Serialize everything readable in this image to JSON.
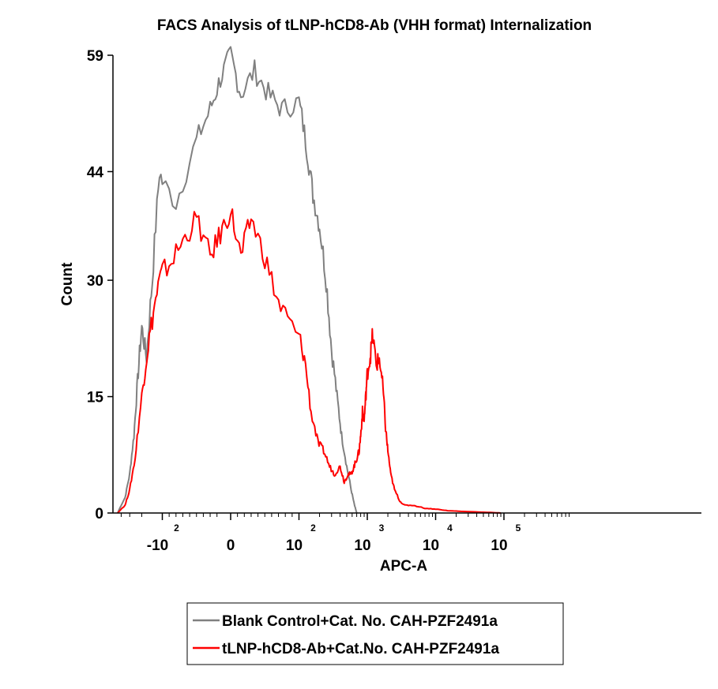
{
  "chart_data": {
    "type": "line",
    "title": "FACS Analysis of tLNP-hCD8-Ab (VHH format) Internalization",
    "xlabel": "APC-A",
    "ylabel": "Count",
    "ylim": [
      0,
      59
    ],
    "y_ticks": [
      "0",
      "15",
      "30",
      "44",
      "59"
    ],
    "x_scale": "biexponential",
    "x_ticks": [
      {
        "base": "-10",
        "exp": "2",
        "value": -100
      },
      {
        "base": "0",
        "exp": "",
        "value": 0
      },
      {
        "base": "10",
        "exp": "2",
        "value": 100
      },
      {
        "base": "10",
        "exp": "3",
        "value": 1000
      },
      {
        "base": "10",
        "exp": "4",
        "value": 10000
      },
      {
        "base": "10",
        "exp": "5",
        "value": 100000
      }
    ],
    "legend_position": "bottom",
    "series": [
      {
        "name": "Blank Control+Cat. No. CAH-PZF2491a",
        "color": "#808080",
        "x": [
          -450,
          -350,
          -300,
          -260,
          -230,
          -200,
          -170,
          -140,
          -110,
          -80,
          -50,
          -30,
          -15,
          0,
          15,
          35,
          55,
          75,
          100,
          130,
          160,
          200,
          250,
          300,
          360,
          420,
          500,
          580,
          650,
          700
        ],
        "y": [
          0,
          2,
          5,
          10,
          17,
          24,
          20,
          30,
          44,
          40,
          48,
          52,
          56,
          59,
          54,
          57,
          54,
          52,
          53,
          47,
          41,
          37,
          30,
          21,
          15,
          10,
          6,
          3,
          1,
          0
        ]
      },
      {
        "name": "tLNP-hCD8-Ab+Cat.No. CAH-PZF2491a",
        "color": "#ff0000",
        "x": [
          -450,
          -350,
          -300,
          -250,
          -200,
          -170,
          -140,
          -110,
          -90,
          -70,
          -50,
          -30,
          -15,
          0,
          15,
          30,
          50,
          70,
          90,
          120,
          150,
          190,
          230,
          280,
          330,
          400,
          460,
          520,
          580,
          640,
          700,
          760,
          800,
          850,
          900,
          950,
          1000,
          1100,
          1200,
          1350,
          1500,
          1700,
          1850,
          2000,
          2200,
          2500,
          3000,
          3500,
          4500,
          7000,
          10000,
          15000,
          25000,
          50000,
          90000
        ],
        "y": [
          0,
          1,
          3,
          7,
          15,
          20,
          25,
          30,
          32,
          35,
          38,
          33,
          36,
          39,
          33,
          38,
          33,
          27,
          24,
          20,
          13,
          9,
          8,
          6,
          5,
          6,
          4,
          5,
          5,
          6,
          7,
          8,
          10,
          13,
          12,
          15,
          18,
          20,
          23,
          19,
          20,
          16,
          11,
          8,
          5,
          3,
          1.5,
          1,
          1,
          0.6,
          0.5,
          0.3,
          0.2,
          0.1,
          0
        ]
      }
    ]
  }
}
